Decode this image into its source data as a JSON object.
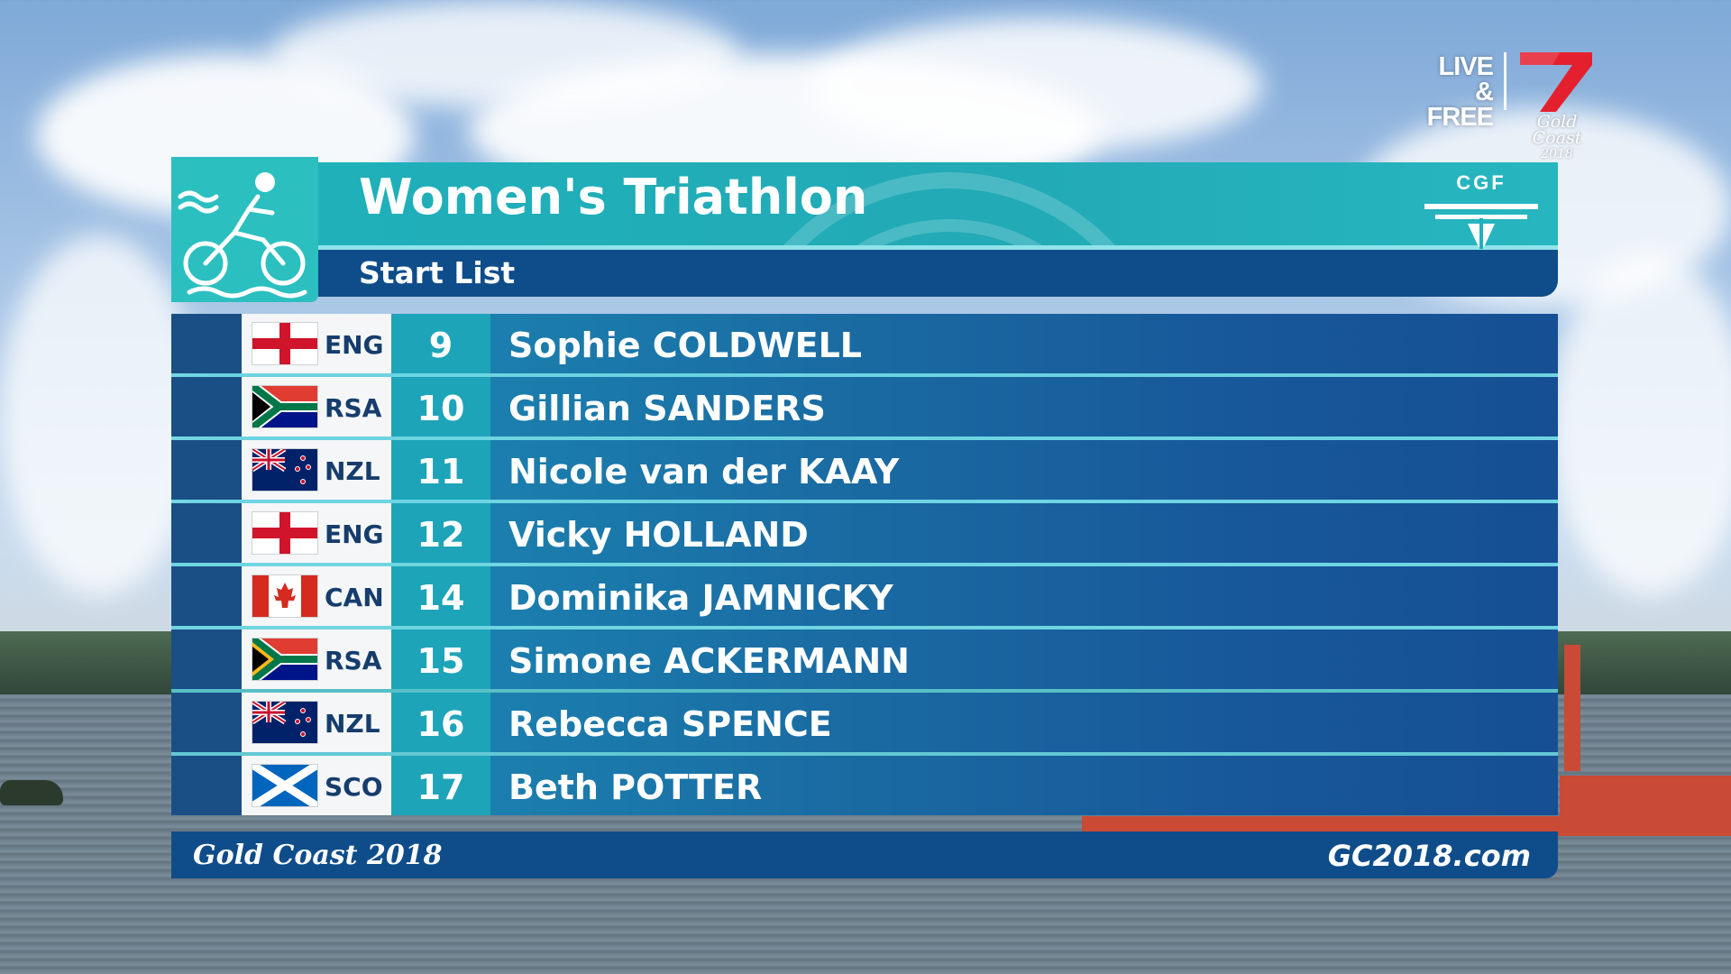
{
  "broadcast": {
    "live_label": "LIVE &",
    "free_label": "FREE",
    "channel_icon": "seven-logo-icon",
    "event_logo_line1": "Gold Coast",
    "event_logo_line2": "2018"
  },
  "graphic": {
    "sport_icon": "triathlon-icon",
    "title": "Women's Triathlon",
    "subtitle": "Start List",
    "federation_logo": "CGF",
    "colors": {
      "title_bar": "#1fb0ba",
      "subtitle_bar": "#0f4d8a",
      "bib_cell": "#1ea4b8",
      "name_cell": "#1a6aa2"
    },
    "entries": [
      {
        "flag": "england-flag-icon",
        "code": "ENG",
        "bib": "9",
        "name": "Sophie COLDWELL"
      },
      {
        "flag": "south-africa-flag-icon",
        "code": "RSA",
        "bib": "10",
        "name": "Gillian SANDERS"
      },
      {
        "flag": "new-zealand-flag-icon",
        "code": "NZL",
        "bib": "11",
        "name": "Nicole van der KAAY"
      },
      {
        "flag": "england-flag-icon",
        "code": "ENG",
        "bib": "12",
        "name": "Vicky HOLLAND"
      },
      {
        "flag": "canada-flag-icon",
        "code": "CAN",
        "bib": "14",
        "name": "Dominika JAMNICKY"
      },
      {
        "flag": "south-africa-flag-icon",
        "code": "RSA",
        "bib": "15",
        "name": "Simone ACKERMANN"
      },
      {
        "flag": "new-zealand-flag-icon",
        "code": "NZL",
        "bib": "16",
        "name": "Rebecca SPENCE"
      },
      {
        "flag": "scotland-flag-icon",
        "code": "SCO",
        "bib": "17",
        "name": "Beth POTTER"
      }
    ],
    "footer_left": "Gold Coast 2018",
    "footer_right": "GC2018.com"
  }
}
